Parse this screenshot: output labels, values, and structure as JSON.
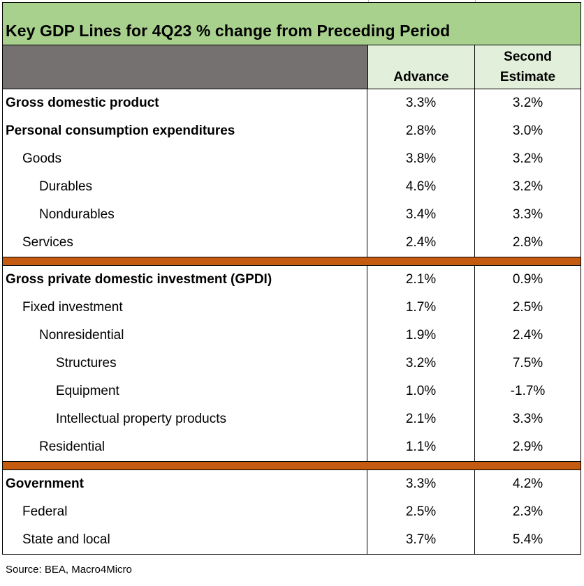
{
  "title": "Key GDP Lines for 4Q23 % change from Preceding Period",
  "columns": {
    "advance": "Advance",
    "second_line1": "Second",
    "second_line2": "Estimate"
  },
  "sections": [
    [
      {
        "label": "Gross domestic product",
        "advance": "3.3%",
        "second": "3.2%",
        "level": 0,
        "bold": true
      },
      {
        "label": "Personal consumption expenditures",
        "advance": "2.8%",
        "second": "3.0%",
        "level": 0,
        "bold": true
      },
      {
        "label": "Goods",
        "advance": "3.8%",
        "second": "3.2%",
        "level": 1,
        "bold": false
      },
      {
        "label": "Durables",
        "advance": "4.6%",
        "second": "3.2%",
        "level": 2,
        "bold": false
      },
      {
        "label": "Nondurables",
        "advance": "3.4%",
        "second": "3.3%",
        "level": 2,
        "bold": false
      },
      {
        "label": "Services",
        "advance": "2.4%",
        "second": "2.8%",
        "level": 1,
        "bold": false
      }
    ],
    [
      {
        "label": "Gross private domestic investment (GPDI)",
        "advance": "2.1%",
        "second": "0.9%",
        "level": 0,
        "bold": true
      },
      {
        "label": "Fixed investment",
        "advance": "1.7%",
        "second": "2.5%",
        "level": 1,
        "bold": false
      },
      {
        "label": "Nonresidential",
        "advance": "1.9%",
        "second": "2.4%",
        "level": 2,
        "bold": false
      },
      {
        "label": "Structures",
        "advance": "3.2%",
        "second": "7.5%",
        "level": 3,
        "bold": false
      },
      {
        "label": "Equipment",
        "advance": "1.0%",
        "second": "-1.7%",
        "level": 3,
        "bold": false
      },
      {
        "label": "Intellectual property products",
        "advance": "2.1%",
        "second": "3.3%",
        "level": 3,
        "bold": false
      },
      {
        "label": "Residential",
        "advance": "1.1%",
        "second": "2.9%",
        "level": 2,
        "bold": false
      }
    ],
    [
      {
        "label": "Government",
        "advance": "3.3%",
        "second": "4.2%",
        "level": 0,
        "bold": true
      },
      {
        "label": "Federal",
        "advance": "2.5%",
        "second": "2.3%",
        "level": 1,
        "bold": false
      },
      {
        "label": "State and local",
        "advance": "3.7%",
        "second": "5.4%",
        "level": 1,
        "bold": false
      }
    ]
  ],
  "source": "Source: BEA, Macro4Micro",
  "colors": {
    "title_bg": "#a9d18e",
    "header_bg": "#e2efda",
    "header_blank": "#767171",
    "separator": "#c55a11"
  }
}
